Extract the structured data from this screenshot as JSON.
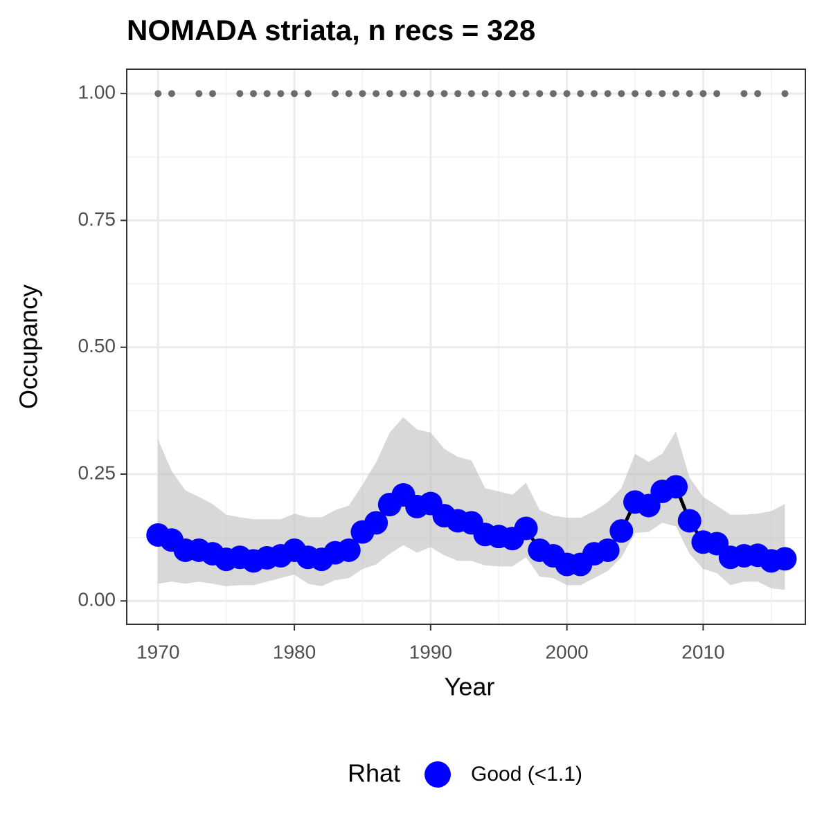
{
  "chart_data": {
    "type": "line",
    "title": "NOMADA striata, n recs = 328",
    "xlabel": "Year",
    "ylabel": "Occupancy",
    "legend_title": "Rhat",
    "legend_position": "bottom",
    "grid": true,
    "line_color": "#000000",
    "ribbon_color": "#bebebe",
    "x": [
      1970,
      1971,
      1972,
      1973,
      1974,
      1975,
      1976,
      1977,
      1978,
      1979,
      1980,
      1981,
      1982,
      1983,
      1984,
      1985,
      1986,
      1987,
      1988,
      1989,
      1990,
      1991,
      1992,
      1993,
      1994,
      1995,
      1996,
      1997,
      1998,
      1999,
      2000,
      2001,
      2002,
      2003,
      2004,
      2005,
      2006,
      2007,
      2008,
      2009,
      2010,
      2011,
      2012,
      2013,
      2014,
      2015,
      2016
    ],
    "series": [
      {
        "name": "Good (<1.1)",
        "color": "#0000ff",
        "values": [
          0.13,
          0.12,
          0.1,
          0.1,
          0.093,
          0.082,
          0.086,
          0.079,
          0.085,
          0.089,
          0.1,
          0.086,
          0.082,
          0.095,
          0.1,
          0.136,
          0.154,
          0.19,
          0.209,
          0.186,
          0.192,
          0.168,
          0.158,
          0.154,
          0.131,
          0.127,
          0.123,
          0.143,
          0.1,
          0.089,
          0.072,
          0.072,
          0.093,
          0.1,
          0.138,
          0.195,
          0.188,
          0.216,
          0.225,
          0.158,
          0.116,
          0.113,
          0.086,
          0.089,
          0.09,
          0.079,
          0.083
        ],
        "lower": [
          0.034,
          0.038,
          0.034,
          0.038,
          0.034,
          0.029,
          0.031,
          0.031,
          0.038,
          0.045,
          0.052,
          0.034,
          0.029,
          0.041,
          0.045,
          0.063,
          0.072,
          0.093,
          0.11,
          0.095,
          0.106,
          0.09,
          0.079,
          0.079,
          0.07,
          0.068,
          0.068,
          0.086,
          0.048,
          0.045,
          0.031,
          0.031,
          0.045,
          0.059,
          0.086,
          0.134,
          0.136,
          0.154,
          0.147,
          0.093,
          0.063,
          0.055,
          0.031,
          0.038,
          0.038,
          0.025,
          0.022
        ],
        "upper": [
          0.318,
          0.256,
          0.218,
          0.205,
          0.191,
          0.17,
          0.165,
          0.161,
          0.161,
          0.161,
          0.172,
          0.165,
          0.165,
          0.179,
          0.188,
          0.229,
          0.273,
          0.332,
          0.362,
          0.338,
          0.332,
          0.3,
          0.284,
          0.277,
          0.222,
          0.216,
          0.209,
          0.233,
          0.179,
          0.168,
          0.164,
          0.164,
          0.177,
          0.195,
          0.222,
          0.29,
          0.274,
          0.29,
          0.334,
          0.243,
          0.205,
          0.188,
          0.17,
          0.17,
          0.172,
          0.177,
          0.191
        ]
      }
    ],
    "records": {
      "color": "#6b6b6b",
      "x": [
        1970,
        1971,
        1973,
        1974,
        1976,
        1977,
        1978,
        1979,
        1980,
        1981,
        1983,
        1984,
        1985,
        1986,
        1987,
        1988,
        1989,
        1990,
        1991,
        1992,
        1993,
        1994,
        1995,
        1996,
        1997,
        1998,
        1999,
        2000,
        2001,
        2002,
        2003,
        2004,
        2005,
        2006,
        2007,
        2008,
        2009,
        2010,
        2011,
        2013,
        2014,
        2016
      ],
      "values": [
        1,
        1,
        1,
        1,
        1,
        1,
        1,
        1,
        1,
        1,
        1,
        1,
        1,
        1,
        1,
        1,
        1,
        1,
        1,
        1,
        1,
        1,
        1,
        1,
        1,
        1,
        1,
        1,
        1,
        1,
        1,
        1,
        1,
        1,
        1,
        1,
        1,
        1,
        1,
        1,
        1,
        1
      ]
    },
    "xlim": [
      1967.7,
      2017.5
    ],
    "xticks": [
      1970,
      1980,
      1990,
      2000,
      2010
    ],
    "ylim": [
      -0.046,
      1.048
    ],
    "yticks": [
      {
        "value": 0,
        "label": "0.00"
      },
      {
        "value": 0.25,
        "label": "0.25"
      },
      {
        "value": 0.5,
        "label": "0.50"
      },
      {
        "value": 0.75,
        "label": "0.75"
      },
      {
        "value": 1,
        "label": "1.00"
      }
    ]
  }
}
